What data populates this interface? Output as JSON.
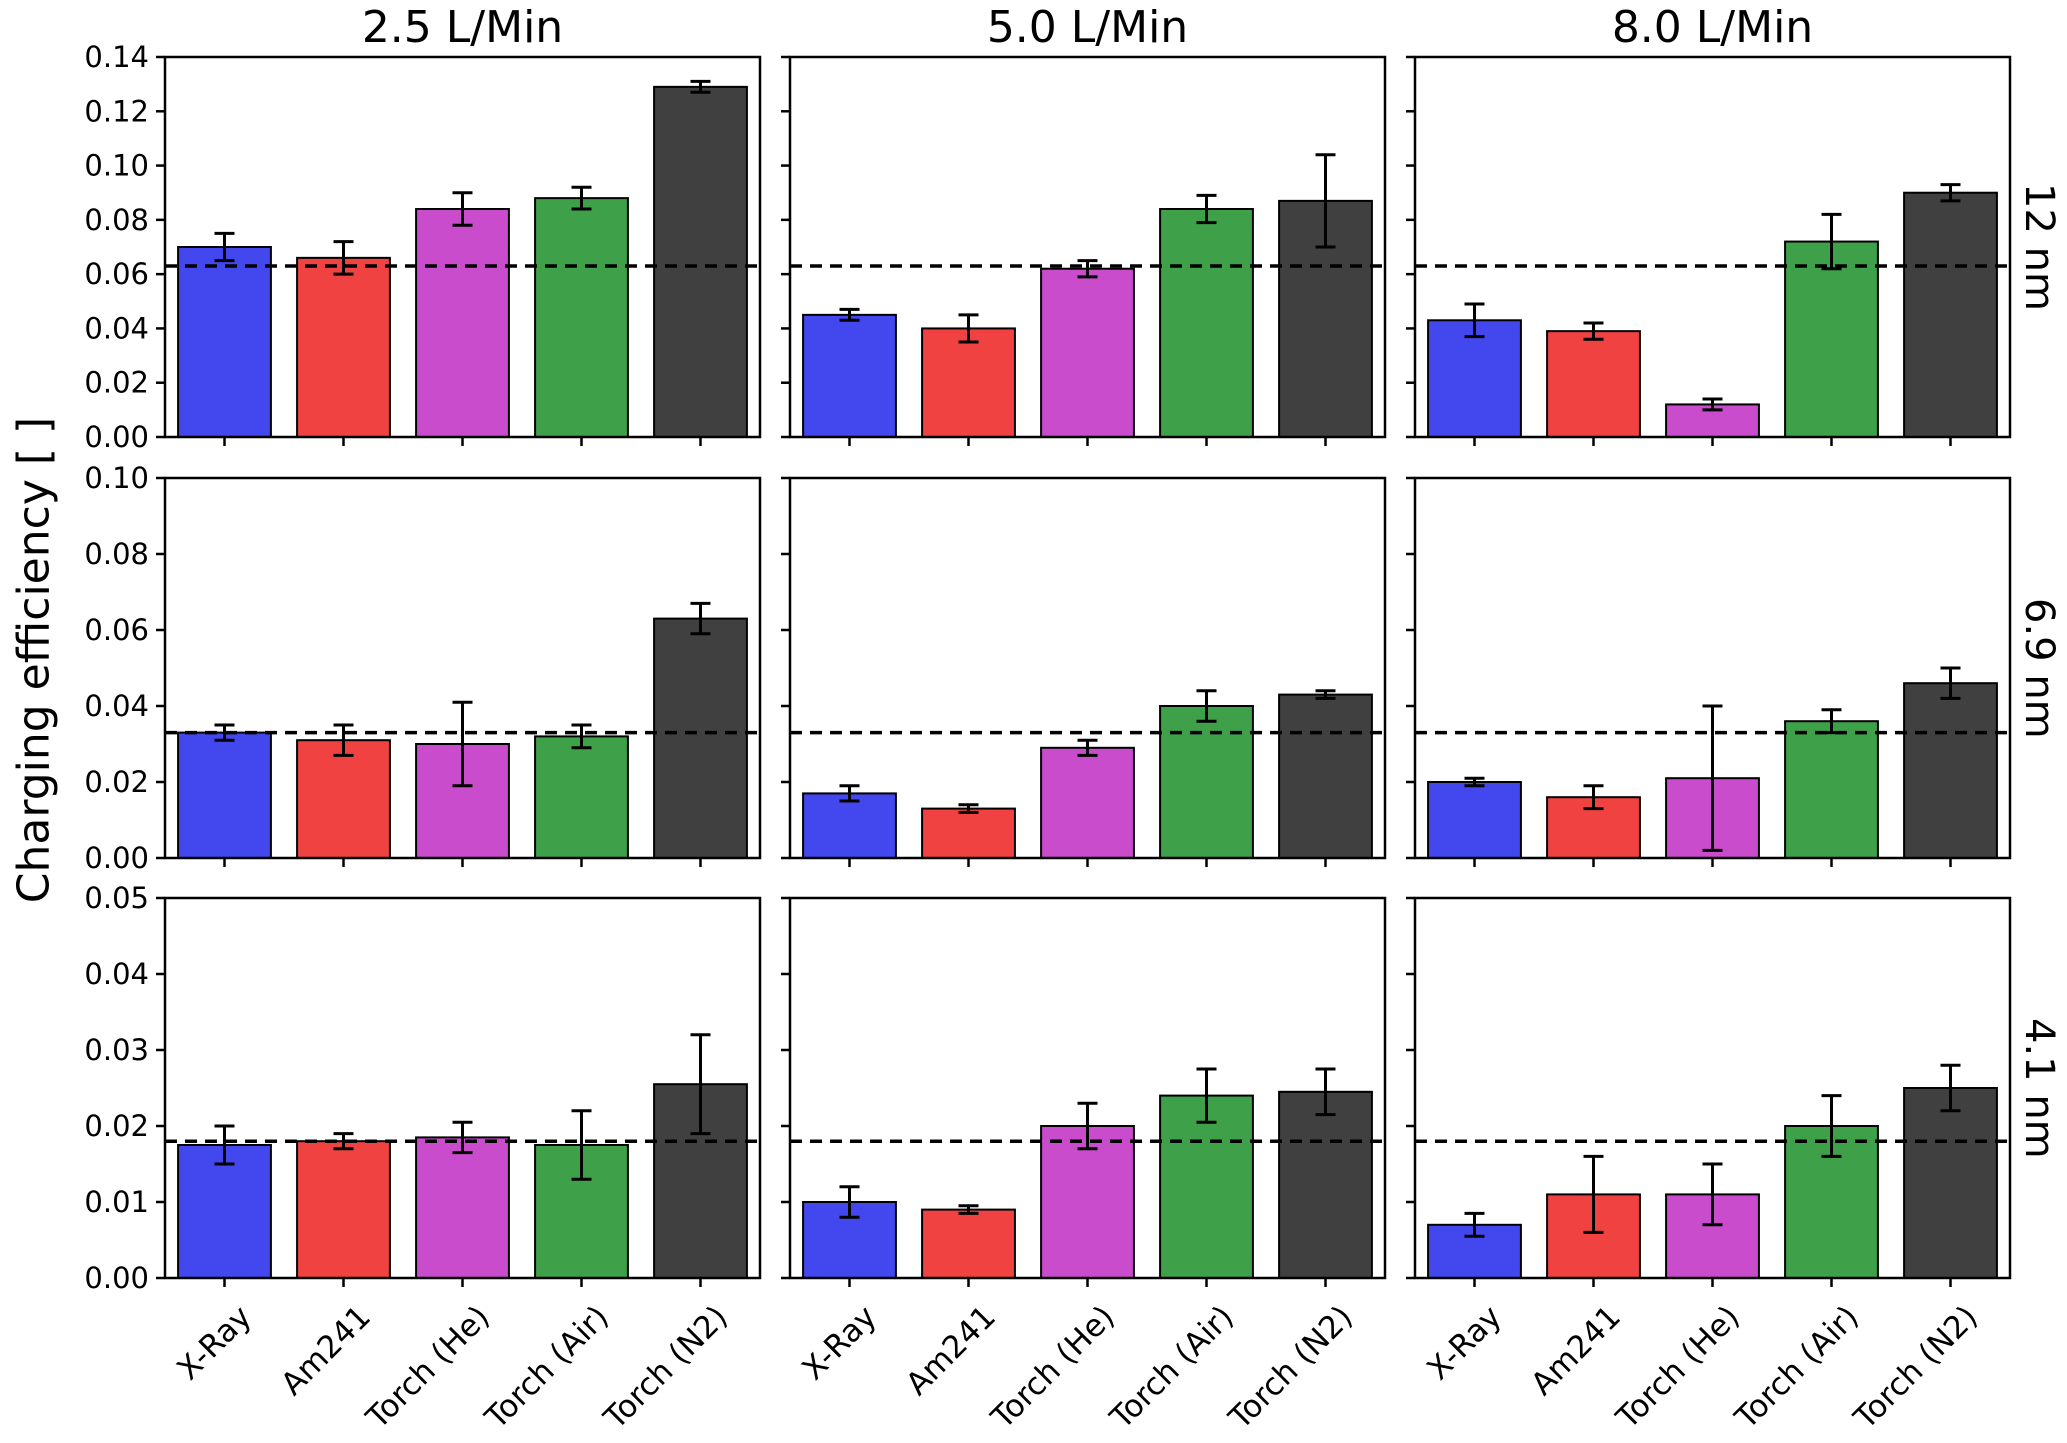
{
  "chart_data": {
    "type": "bar",
    "title": "",
    "ylabel": "Charging efficiency [ ]",
    "xlabel": "",
    "grid": false,
    "legend": "none",
    "categories": [
      "X-Ray",
      "Am241",
      "Torch (He)",
      "Torch (Air)",
      "Torch (N2)"
    ],
    "bar_colors": [
      "#4347ee",
      "#f04341",
      "#c94ccc",
      "#3fa04a",
      "#404040"
    ],
    "bar_edge_color": "#000000",
    "error_bar_color": "#000000",
    "reference_line_style": "dashed",
    "col_titles": [
      "2.5 L/Min",
      "5.0 L/Min",
      "8.0 L/Min"
    ],
    "row_labels": [
      "12 nm",
      "6.9 nm",
      "4.1 nm"
    ],
    "rows": [
      {
        "particle_size": "12 nm",
        "ylim": [
          0,
          0.14
        ],
        "yticks": [
          0.0,
          0.02,
          0.04,
          0.06,
          0.08,
          0.1,
          0.12,
          0.14
        ],
        "reference_line": 0.063,
        "panels": [
          {
            "flow": "2.5 L/Min",
            "values": [
              0.07,
              0.066,
              0.084,
              0.088,
              0.129
            ],
            "errors": [
              0.005,
              0.006,
              0.006,
              0.004,
              0.002
            ]
          },
          {
            "flow": "5.0 L/Min",
            "values": [
              0.045,
              0.04,
              0.062,
              0.084,
              0.087
            ],
            "errors": [
              0.002,
              0.005,
              0.003,
              0.005,
              0.017
            ]
          },
          {
            "flow": "8.0 L/Min",
            "values": [
              0.043,
              0.039,
              0.012,
              0.072,
              0.09
            ],
            "errors": [
              0.006,
              0.003,
              0.002,
              0.01,
              0.003
            ]
          }
        ]
      },
      {
        "particle_size": "6.9 nm",
        "ylim": [
          0,
          0.1
        ],
        "yticks": [
          0.0,
          0.02,
          0.04,
          0.06,
          0.08,
          0.1
        ],
        "reference_line": 0.033,
        "panels": [
          {
            "flow": "2.5 L/Min",
            "values": [
              0.033,
              0.031,
              0.03,
              0.032,
              0.063
            ],
            "errors": [
              0.002,
              0.004,
              0.011,
              0.003,
              0.004
            ]
          },
          {
            "flow": "5.0 L/Min",
            "values": [
              0.017,
              0.013,
              0.029,
              0.04,
              0.043
            ],
            "errors": [
              0.002,
              0.001,
              0.002,
              0.004,
              0.001
            ]
          },
          {
            "flow": "8.0 L/Min",
            "values": [
              0.02,
              0.016,
              0.021,
              0.036,
              0.046
            ],
            "errors": [
              0.001,
              0.003,
              0.019,
              0.003,
              0.004
            ]
          }
        ]
      },
      {
        "particle_size": "4.1 nm",
        "ylim": [
          0,
          0.05
        ],
        "yticks": [
          0.0,
          0.01,
          0.02,
          0.03,
          0.04,
          0.05
        ],
        "reference_line": 0.018,
        "panels": [
          {
            "flow": "2.5 L/Min",
            "values": [
              0.0175,
              0.018,
              0.0185,
              0.0175,
              0.0255
            ],
            "errors": [
              0.0025,
              0.001,
              0.002,
              0.0045,
              0.0065
            ]
          },
          {
            "flow": "5.0 L/Min",
            "values": [
              0.01,
              0.009,
              0.02,
              0.024,
              0.0245
            ],
            "errors": [
              0.002,
              0.0005,
              0.003,
              0.0035,
              0.003
            ]
          },
          {
            "flow": "8.0 L/Min",
            "values": [
              0.007,
              0.011,
              0.011,
              0.02,
              0.025
            ],
            "errors": [
              0.0015,
              0.005,
              0.004,
              0.004,
              0.003
            ]
          }
        ]
      }
    ]
  }
}
